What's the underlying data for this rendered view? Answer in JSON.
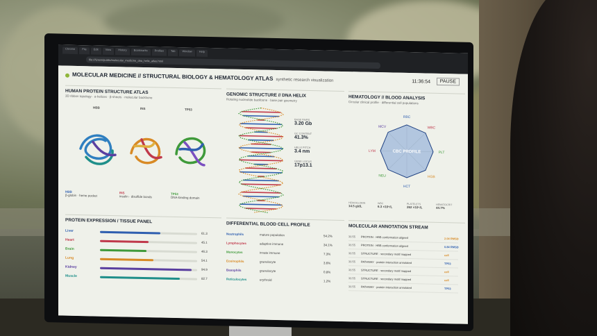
{
  "browser": {
    "tabs": [
      "Chrome",
      "File",
      "Edit",
      "View",
      "History",
      "Bookmarks",
      "Profiles",
      "Tab",
      "Window",
      "Help"
    ],
    "url": "file:///Users/public/molecular_medicine_dna_helix_atlas.html"
  },
  "header": {
    "title": "MOLECULAR MEDICINE // STRUCTURAL BIOLOGY & HEMATOLOGY ATLAS",
    "subtitle": "synthetic research visualization",
    "clock": "11:36:54",
    "pause_label": "PAUSE"
  },
  "protein_atlas": {
    "title": "HUMAN PROTEIN STRUCTURE ATLAS",
    "subtitle": "3D ribbon topology · α-helices · β-sheets · molecular backbone",
    "proteins": [
      {
        "name": "HBB",
        "desc": "β-globin · heme pocket"
      },
      {
        "name": "INS",
        "desc": "insulin · disulfide bonds"
      },
      {
        "name": "TP53",
        "desc": "DNA-binding domain"
      }
    ]
  },
  "genomic": {
    "title": "GENOMIC STRUCTURE // DNA HELIX",
    "subtitle": "Rotating nucleotide backbone · base pair geometry",
    "stats": [
      {
        "label": "BASE PAIRS",
        "value": "3.20 Gb"
      },
      {
        "label": "GC CONTENT",
        "value": "41.3%"
      },
      {
        "label": "HELIX PITCH",
        "value": "3.4 nm"
      },
      {
        "label": "GENE LOCUS",
        "value": "17p13.1"
      }
    ]
  },
  "hematology": {
    "title": "HEMATOLOGY // BLOOD ANALYSIS",
    "subtitle": "Circular clinical profile · differential cell populations",
    "center_label": "CBC PROFILE",
    "axes": [
      "RBC",
      "WBC",
      "PLT",
      "HGB",
      "HCT",
      "NEU",
      "LYM",
      "MCV"
    ],
    "summary": [
      {
        "label": "HEMOGLOBIN",
        "value": "14.5 g/dL"
      },
      {
        "label": "WBC",
        "value": "6.3 ×10⁹/L"
      },
      {
        "label": "PLATELETS",
        "value": "262 ×10⁹/L"
      },
      {
        "label": "HEMATOCRIT",
        "value": "44.7%"
      }
    ]
  },
  "expression": {
    "title": "PROTEIN EXPRESSION / TISSUE PANEL",
    "rows": [
      {
        "tissue": "Liver",
        "value": "61.3",
        "frac": 0.62,
        "color": "#2f5fb0"
      },
      {
        "tissue": "Heart",
        "value": "45.1",
        "frac": 0.5,
        "color": "#c0394b"
      },
      {
        "tissue": "Brain",
        "value": "46.3",
        "frac": 0.48,
        "color": "#3f9a3a"
      },
      {
        "tissue": "Lung",
        "value": "54.1",
        "frac": 0.55,
        "color": "#d88a25"
      },
      {
        "tissue": "Kidney",
        "value": "94.9",
        "frac": 0.94,
        "color": "#5a3fa0"
      },
      {
        "tissue": "Muscle",
        "value": "82.7",
        "frac": 0.82,
        "color": "#1f8f8a"
      }
    ]
  },
  "cells": {
    "title": "DIFFERENTIAL BLOOD CELL PROFILE",
    "rows": [
      {
        "name": "Neutrophils",
        "desc": "mature population",
        "value": "54.2%",
        "color": "#2f5fb0"
      },
      {
        "name": "Lymphocytes",
        "desc": "adaptive immune",
        "value": "34.1%",
        "color": "#c0394b"
      },
      {
        "name": "Monocytes",
        "desc": "innate immune",
        "value": "7.3%",
        "color": "#3f9a3a"
      },
      {
        "name": "Eosinophils",
        "desc": "granulocyte",
        "value": "3.6%",
        "color": "#d88a25"
      },
      {
        "name": "Basophils",
        "desc": "granulocyte",
        "value": "0.8%",
        "color": "#5a3fa0"
      },
      {
        "name": "Reticulocytes",
        "desc": "erythroid",
        "value": "1.2%",
        "color": "#1f8f8a"
      }
    ]
  },
  "stream": {
    "title": "MOLECULAR ANNOTATION STREAM",
    "rows": [
      {
        "time": "36:55",
        "text": "PROTEIN · HBB conformation aligned",
        "tag": "2.04 RMSD",
        "color": "#d88a25"
      },
      {
        "time": "36:55",
        "text": "PROTEIN · HBB conformation aligned",
        "tag": "0.84 RMSD",
        "color": "#2f5fb0"
      },
      {
        "time": "36:55",
        "text": "STRUCTURE · secondary motif mapped",
        "tag": "cell",
        "color": "#d88a25"
      },
      {
        "time": "36:55",
        "text": "PATHWAY · protein interaction annotated",
        "tag": "TP53",
        "color": "#2f5fb0"
      },
      {
        "time": "36:55",
        "text": "STRUCTURE · secondary motif mapped",
        "tag": "cell",
        "color": "#d88a25"
      },
      {
        "time": "36:55",
        "text": "STRUCTURE · secondary motif mapped",
        "tag": "cell",
        "color": "#d88a25"
      },
      {
        "time": "36:55",
        "text": "PATHWAY · protein interaction annotated",
        "tag": "TP53",
        "color": "#2f5fb0"
      }
    ]
  }
}
